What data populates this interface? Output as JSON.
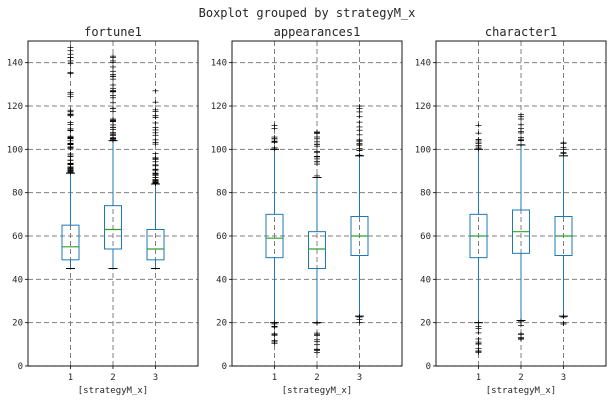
{
  "figure": {
    "suptitle": "Boxplot grouped by strategyM_x"
  },
  "chart_data": [
    {
      "type": "boxplot",
      "title": "fortune1",
      "xlabel": "[strategyM_x]",
      "ylabel": "",
      "ylim": [
        0,
        150
      ],
      "yticks": [
        0,
        20,
        40,
        60,
        80,
        100,
        120,
        140
      ],
      "categories": [
        "1",
        "2",
        "3"
      ],
      "grid": true,
      "boxes": [
        {
          "category": "1",
          "whisker_low": 45,
          "q1": 49,
          "median": 55,
          "q3": 65,
          "whisker_high": 89,
          "outlier_range": [
            89,
            147
          ]
        },
        {
          "category": "2",
          "whisker_low": 45,
          "q1": 54,
          "median": 63,
          "q3": 74,
          "whisker_high": 104,
          "outlier_range": [
            104,
            143
          ]
        },
        {
          "category": "3",
          "whisker_low": 45,
          "q1": 49,
          "median": 54,
          "q3": 63,
          "whisker_high": 84,
          "outlier_range": [
            84,
            127
          ]
        }
      ]
    },
    {
      "type": "boxplot",
      "title": "appearances1",
      "xlabel": "[strategyM_x]",
      "ylabel": "",
      "ylim": [
        0,
        150
      ],
      "yticks": [
        0,
        20,
        40,
        60,
        80,
        100,
        120,
        140
      ],
      "categories": [
        "1",
        "2",
        "3"
      ],
      "grid": true,
      "boxes": [
        {
          "category": "1",
          "whisker_low": 20,
          "q1": 50,
          "median": 59,
          "q3": 70,
          "whisker_high": 100,
          "outlier_range_low": [
            6,
            20
          ],
          "outlier_range_high": [
            100,
            111
          ]
        },
        {
          "category": "2",
          "whisker_low": 20,
          "q1": 45,
          "median": 54,
          "q3": 62,
          "whisker_high": 87,
          "outlier_range_low": [
            6,
            20
          ],
          "outlier_range_high": [
            87,
            108
          ]
        },
        {
          "category": "3",
          "whisker_low": 23,
          "q1": 51,
          "median": 60,
          "q3": 69,
          "whisker_high": 97,
          "outlier_range_low": [
            20,
            23
          ],
          "outlier_range_high": [
            97,
            120
          ]
        }
      ]
    },
    {
      "type": "boxplot",
      "title": "character1",
      "xlabel": "[strategyM_x]",
      "ylabel": "",
      "ylim": [
        0,
        150
      ],
      "yticks": [
        0,
        20,
        40,
        60,
        80,
        100,
        120,
        140
      ],
      "categories": [
        "1",
        "2",
        "3"
      ],
      "grid": true,
      "boxes": [
        {
          "category": "1",
          "whisker_low": 20,
          "q1": 50,
          "median": 60,
          "q3": 70,
          "whisker_high": 100,
          "outlier_range_low": [
            6,
            20
          ],
          "outlier_range_high": [
            100,
            111
          ]
        },
        {
          "category": "2",
          "whisker_low": 21,
          "q1": 52,
          "median": 62,
          "q3": 72,
          "whisker_high": 102,
          "outlier_range_low": [
            12,
            21
          ],
          "outlier_range_high": [
            102,
            116
          ]
        },
        {
          "category": "3",
          "whisker_low": 23,
          "q1": 51,
          "median": 60,
          "q3": 69,
          "whisker_high": 97,
          "outlier_range_low": [
            19,
            23
          ],
          "outlier_range_high": [
            97,
            103
          ]
        }
      ]
    }
  ]
}
